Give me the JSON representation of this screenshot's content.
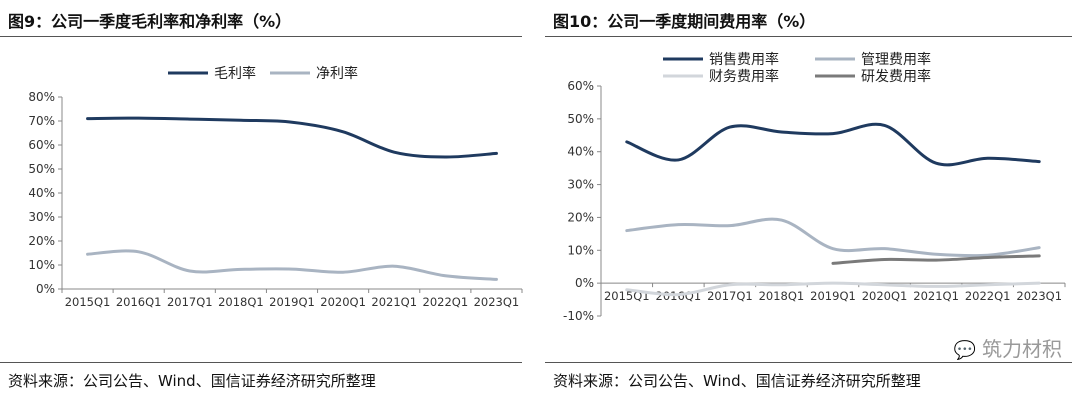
{
  "chart_data": [
    {
      "type": "line",
      "title": "图9：公司一季度毛利率和净利率（%）",
      "source": "资料来源：公司公告、Wind、国信证券经济研究所整理",
      "categories": [
        "2015Q1",
        "2016Q1",
        "2017Q1",
        "2018Q1",
        "2019Q1",
        "2020Q1",
        "2021Q1",
        "2022Q1",
        "2023Q1"
      ],
      "yticks": [
        "0%",
        "10%",
        "20%",
        "30%",
        "40%",
        "50%",
        "60%",
        "70%",
        "80%"
      ],
      "ylim": [
        0,
        80
      ],
      "legend_position": "top",
      "series": [
        {
          "name": "毛利率",
          "color": "#1f3a5f",
          "values": [
            71,
            71.2,
            70.8,
            70.3,
            69.5,
            65.5,
            57,
            55,
            56.5
          ]
        },
        {
          "name": "净利率",
          "color": "#a9b4c2",
          "values": [
            14.5,
            15.5,
            7.5,
            8.2,
            8.3,
            7,
            9.5,
            5.5,
            4
          ]
        }
      ]
    },
    {
      "type": "line",
      "title": "图10：公司一季度期间费用率（%）",
      "source": "资料来源：公司公告、Wind、国信证券经济研究所整理",
      "categories": [
        "2015Q1",
        "2016Q1",
        "2017Q1",
        "2018Q1",
        "2019Q1",
        "2020Q1",
        "2021Q1",
        "2022Q1",
        "2023Q1"
      ],
      "yticks": [
        "-10%",
        "0%",
        "10%",
        "20%",
        "30%",
        "40%",
        "50%",
        "60%"
      ],
      "ylim": [
        -10,
        60
      ],
      "legend_position": "top",
      "series": [
        {
          "name": "销售费用率",
          "color": "#1f3a5f",
          "values": [
            43,
            37.5,
            47.5,
            46,
            45.5,
            48,
            36.5,
            38,
            37
          ]
        },
        {
          "name": "管理费用率",
          "color": "#a9b4c2",
          "values": [
            16,
            17.8,
            17.5,
            19.2,
            10.5,
            10.5,
            8.8,
            8.5,
            10.8
          ]
        },
        {
          "name": "财务费用率",
          "color": "#d2d6db",
          "values": [
            -2,
            -3.5,
            -0.5,
            -0.5,
            0,
            -0.5,
            -1,
            -0.5,
            0
          ]
        },
        {
          "name": "研发费用率",
          "color": "#7a7a7a",
          "values": [
            null,
            null,
            null,
            null,
            6,
            7.2,
            7,
            7.8,
            8.3
          ]
        }
      ]
    }
  ],
  "watermark": {
    "icon": "wechat-icon",
    "text": "筑力材积"
  }
}
